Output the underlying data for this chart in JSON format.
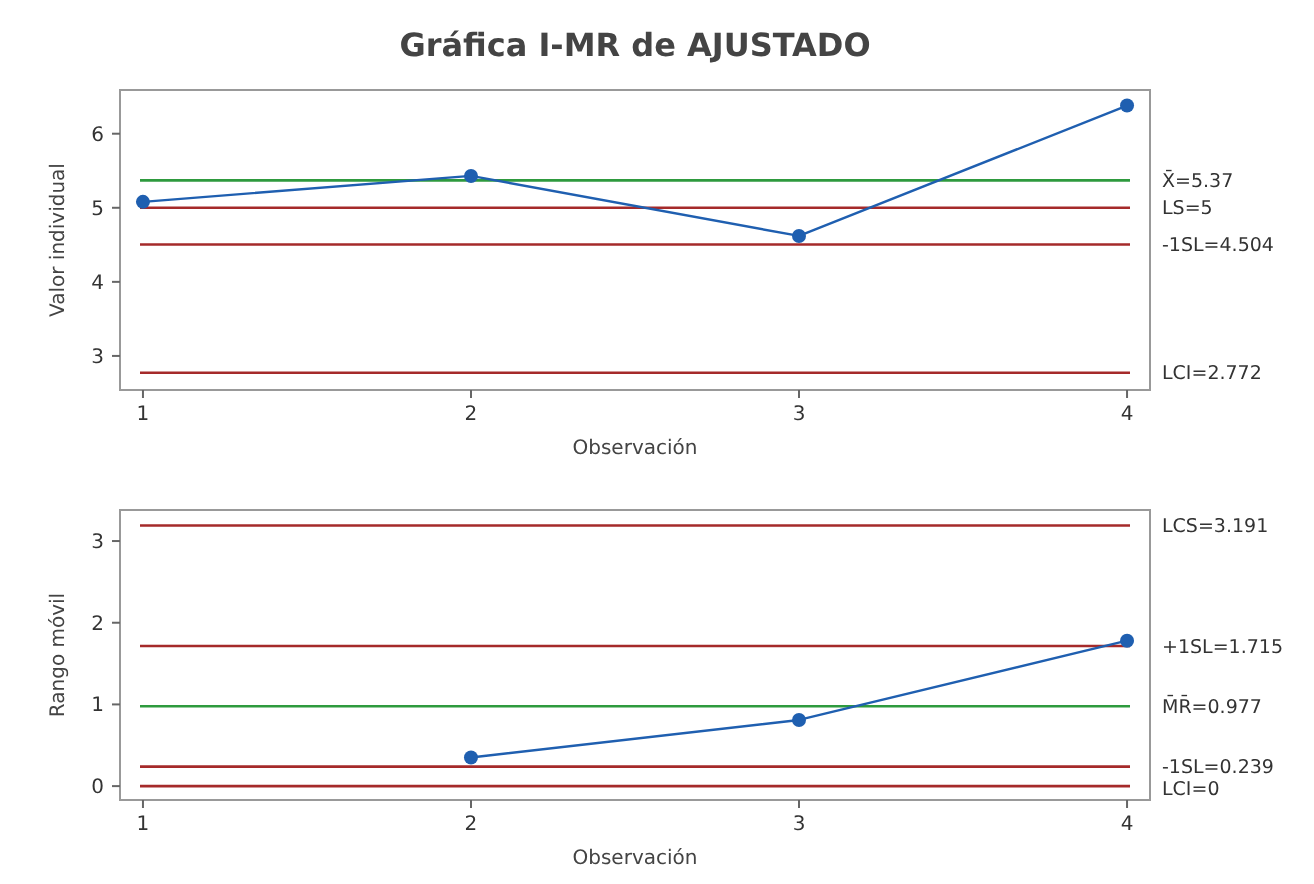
{
  "chart_data": [
    {
      "type": "line",
      "title": "Gráfica I-MR de AJUSTADO",
      "xlabel": "Observación",
      "ylabel": "Valor individual",
      "x": [
        1,
        2,
        3,
        4
      ],
      "xlim": [
        0.93,
        4.07
      ],
      "xticks": [
        1,
        2,
        3,
        4
      ],
      "ylim": [
        2.54,
        6.59
      ],
      "yticks": [
        3,
        4,
        5,
        6
      ],
      "grid": false,
      "marker": "circle",
      "line_style": "solid",
      "series": [
        {
          "color": "#1f5fb0",
          "values": [
            5.08,
            5.43,
            4.62,
            6.38
          ]
        }
      ],
      "ref_lines": [
        {
          "axis": "y",
          "value": 5.37,
          "label": "X̄=5.37",
          "color": "#2e9a3e"
        },
        {
          "axis": "y",
          "value": 5,
          "label": "LS=5",
          "color": "#a52a2a"
        },
        {
          "axis": "y",
          "value": 4.504,
          "label": "-1SL=4.504",
          "color": "#a52a2a"
        },
        {
          "axis": "y",
          "value": 2.772,
          "label": "LCI=2.772",
          "color": "#a52a2a"
        }
      ]
    },
    {
      "type": "line",
      "xlabel": "Observación",
      "ylabel": "Rango móvil",
      "xlim": [
        0.93,
        4.07
      ],
      "xticks": [
        1,
        2,
        3,
        4
      ],
      "ylim": [
        -0.17,
        3.38
      ],
      "yticks": [
        0,
        1,
        2,
        3
      ],
      "grid": false,
      "marker": "circle",
      "line_style": "solid",
      "series": [
        {
          "color": "#1f5fb0",
          "x": [
            2,
            3,
            4
          ],
          "values": [
            0.35,
            0.81,
            1.78
          ]
        }
      ],
      "ref_lines": [
        {
          "axis": "y",
          "value": 3.191,
          "label": "LCS=3.191",
          "color": "#a52a2a"
        },
        {
          "axis": "y",
          "value": 1.715,
          "label": "+1SL=1.715",
          "color": "#a52a2a"
        },
        {
          "axis": "y",
          "value": 0.977,
          "label": "M̄R̄=0.977",
          "color": "#2e9a3e"
        },
        {
          "axis": "y",
          "value": 0.239,
          "label": "-1SL=0.239",
          "color": "#a52a2a"
        },
        {
          "axis": "y",
          "value": 0,
          "label": "LCI=0",
          "color": "#a52a2a"
        }
      ]
    }
  ]
}
